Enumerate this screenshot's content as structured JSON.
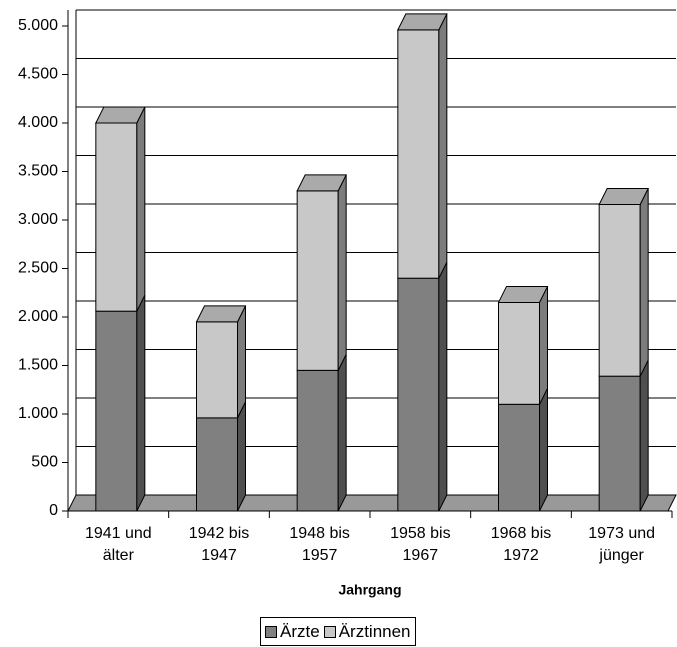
{
  "chart_data": {
    "type": "bar3d_stacked",
    "x_label": "Jahrgang",
    "categories": [
      "1941 und älter",
      "1942 bis 1947",
      "1948 bis 1957",
      "1958 bis 1967",
      "1968 bis 1972",
      "1973 und jünger"
    ],
    "series": [
      {
        "name": "Ärzte",
        "color": "#808080",
        "values": [
          2060,
          960,
          1450,
          2400,
          1100,
          1390
        ]
      },
      {
        "name": "Ärztinnen",
        "color": "#c8c8c8",
        "values": [
          1940,
          990,
          1850,
          2560,
          1050,
          1770
        ]
      }
    ],
    "ylim": [
      0,
      5000
    ],
    "yticks": [
      0,
      500,
      {
        "value": 1000,
        "label": "1.000"
      },
      {
        "value": 1500,
        "label": "1.500"
      },
      {
        "value": 2000,
        "label": "2.000"
      },
      {
        "value": 2500,
        "label": "2.500"
      },
      {
        "value": 3000,
        "label": "3.000"
      },
      {
        "value": 3500,
        "label": "3.500"
      },
      {
        "value": 4000,
        "label": "4.000"
      },
      {
        "value": 4500,
        "label": "4.500"
      },
      {
        "value": 5000,
        "label": "5.000"
      }
    ],
    "grid": true
  }
}
